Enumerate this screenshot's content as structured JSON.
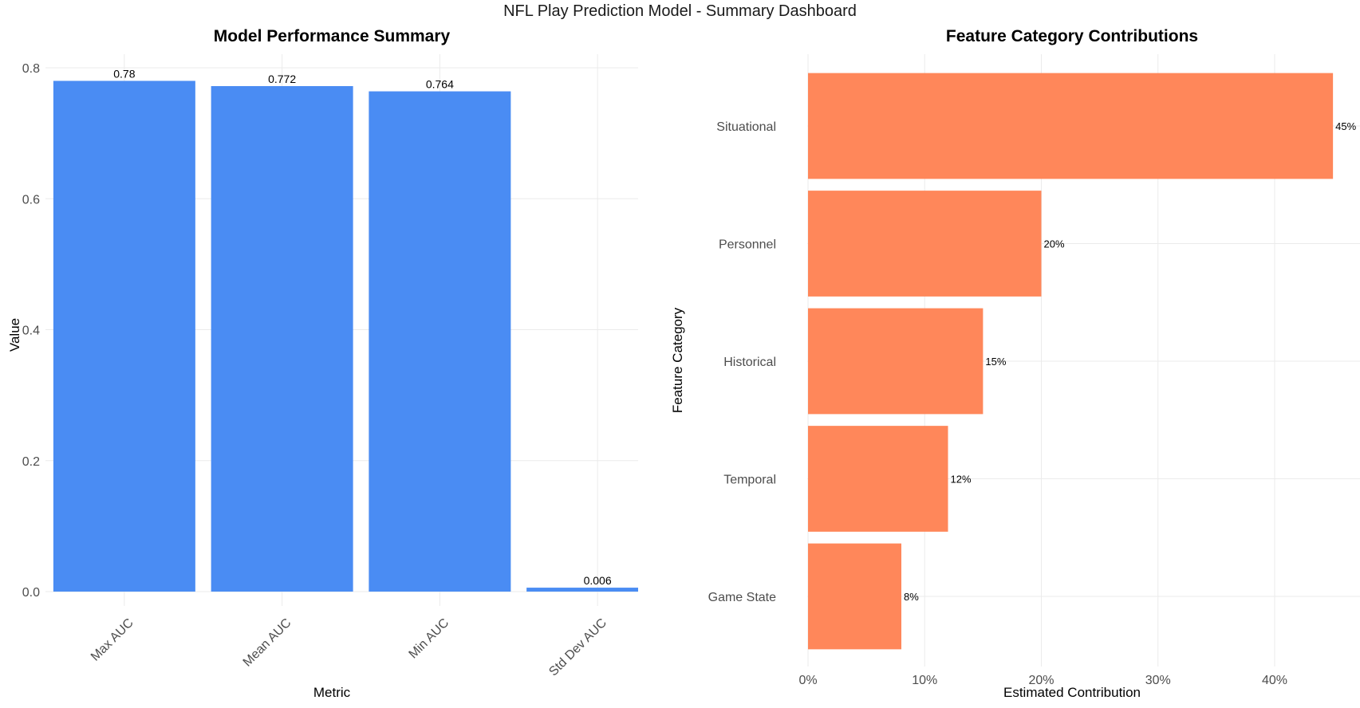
{
  "dashboard": {
    "title": "NFL Play Prediction Model - Summary Dashboard"
  },
  "colors": {
    "performance_bar": "#4a8cf3",
    "contribution_bar": "#ff875a",
    "grid": "#ebebeb",
    "axis_text": "#4d4d4d",
    "label_text": "#000000"
  },
  "chart_data": [
    {
      "type": "bar",
      "orientation": "vertical",
      "title": "Model Performance Summary",
      "xlabel": "Metric",
      "ylabel": "Value",
      "categories": [
        "Max AUC",
        "Mean AUC",
        "Min AUC",
        "Std Dev AUC"
      ],
      "values": [
        0.78,
        0.772,
        0.764,
        0.006
      ],
      "data_labels": [
        "0.78",
        "0.772",
        "0.764",
        "0.006"
      ],
      "ylim": [
        0,
        0.82
      ],
      "yticks": [
        0,
        0.2,
        0.4,
        0.6,
        0.8
      ],
      "ytick_labels": [
        "0.0",
        "0.2",
        "0.4",
        "0.6",
        "0.8"
      ],
      "grid": true,
      "legend": "none"
    },
    {
      "type": "bar",
      "orientation": "horizontal",
      "title": "Feature Category Contributions",
      "xlabel": "Estimated Contribution",
      "ylabel": "Feature Category",
      "categories": [
        "Situational",
        "Personnel",
        "Historical",
        "Temporal",
        "Game State"
      ],
      "values": [
        45,
        20,
        15,
        12,
        8
      ],
      "data_labels": [
        "45%",
        "20%",
        "15%",
        "12%",
        "8%"
      ],
      "xlim": [
        0,
        47.5
      ],
      "xticks": [
        0,
        10,
        20,
        30,
        40
      ],
      "xtick_labels": [
        "0%",
        "10%",
        "20%",
        "30%",
        "40%"
      ],
      "grid": true,
      "legend": "none"
    }
  ]
}
